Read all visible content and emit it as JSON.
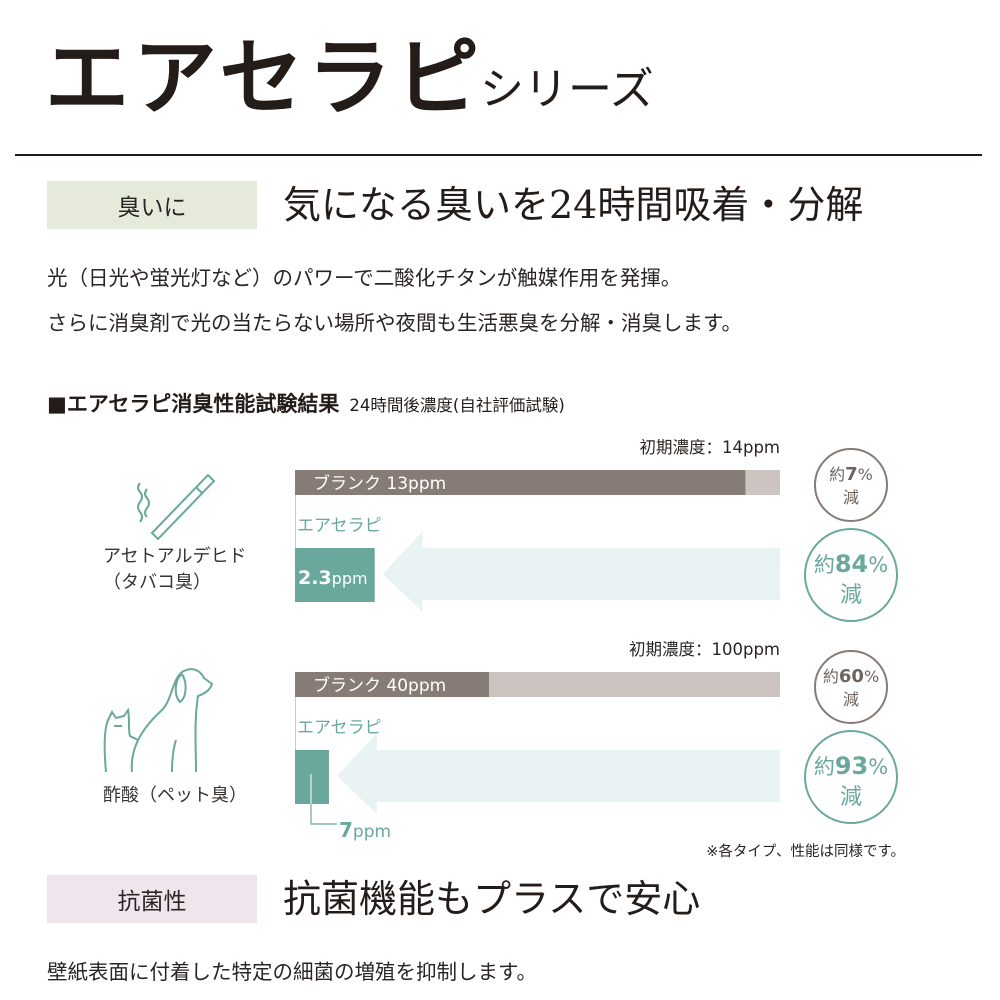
{
  "header": {
    "title": "エアセラピ",
    "subtitle": "シリーズ"
  },
  "section_odor": {
    "tag": "臭いに",
    "heading": "気になる臭いを24時間吸着・分解",
    "lines": [
      "光（日光や蛍光灯など）のパワーで二酸化チタンが触媒作用を発揮。",
      "さらに消臭剤で光の当たらない場所や夜間も生活悪臭を分解・消臭します。"
    ]
  },
  "chart_title": "■エアセラピ消臭性能試験結果",
  "chart_subtitle": "24時間後濃度(自社評価試験)",
  "chart_data": [
    {
      "type": "bar",
      "category": "アセトアルデヒド（タバコ臭）",
      "category_lines": [
        "アセトアルデヒド",
        "（タバコ臭）"
      ],
      "icon": "cigarette-icon",
      "initial_label": "初期濃度：14ppm",
      "initial_value": 14,
      "unit": "ppm",
      "xlim": [
        0,
        14
      ],
      "series": [
        {
          "name": "ブランク",
          "value": 13,
          "label": "ブランク 13ppm",
          "reduction_prefix": "約",
          "reduction_value": "7",
          "reduction_pct": "%",
          "reduction_suffix": "減",
          "color": "#877b75"
        },
        {
          "name": "エアセラピ",
          "value": 2.3,
          "label_num": "2.3",
          "label_unit": "ppm",
          "reduction_prefix": "約",
          "reduction_value": "84",
          "reduction_pct": "%",
          "reduction_suffix": "減",
          "color": "#6aa89e"
        }
      ]
    },
    {
      "type": "bar",
      "category": "酢酸（ペット臭）",
      "category_lines": [
        "酢酸（ペット臭）"
      ],
      "icon": "dog-and-cat-icon",
      "initial_label": "初期濃度：100ppm",
      "initial_value": 100,
      "unit": "ppm",
      "xlim": [
        0,
        100
      ],
      "series": [
        {
          "name": "ブランク",
          "value": 40,
          "label": "ブランク 40ppm",
          "reduction_prefix": "約",
          "reduction_value": "60",
          "reduction_pct": "%",
          "reduction_suffix": "減",
          "color": "#877b75"
        },
        {
          "name": "エアセラピ",
          "value": 7,
          "label_num": "7",
          "label_unit": "ppm",
          "reduction_prefix": "約",
          "reduction_value": "93",
          "reduction_pct": "%",
          "reduction_suffix": "減",
          "color": "#6aa89e"
        }
      ]
    }
  ],
  "colors": {
    "blank": "#877b75",
    "initial": "#ccc4c0",
    "product": "#6aa89e",
    "arrow": "#eaf3f3",
    "tag_odor": "#e5eadb",
    "tag_antibac": "#efe6ed"
  },
  "footnote": "※各タイプ、性能は同様です。",
  "section_antibac": {
    "tag": "抗菌性",
    "heading": "抗菌機能もプラスで安心",
    "lines": [
      "壁紙表面に付着した特定の細菌の増殖を抑制します。"
    ]
  }
}
